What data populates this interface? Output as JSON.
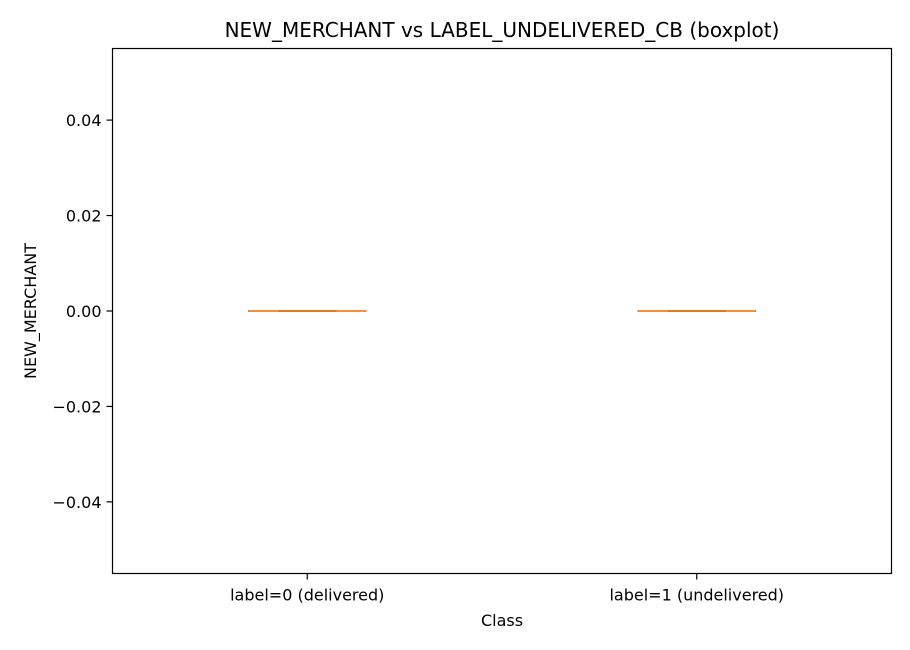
{
  "chart_data": {
    "type": "boxplot",
    "title": "NEW_MERCHANT vs LABEL_UNDELIVERED_CB (boxplot)",
    "xlabel": "Class",
    "ylabel": "NEW_MERCHANT",
    "categories": [
      "label=0 (delivered)",
      "label=1 (undelivered)"
    ],
    "boxes": [
      {
        "category": "label=0 (delivered)",
        "whislo": 0.0,
        "q1": 0.0,
        "median": 0.0,
        "q3": 0.0,
        "whishi": 0.0
      },
      {
        "category": "label=1 (undelivered)",
        "whislo": 0.0,
        "q1": 0.0,
        "median": 0.0,
        "q3": 0.0,
        "whishi": 0.0
      }
    ],
    "yticks": [
      -0.04,
      -0.02,
      0.0,
      0.02,
      0.04
    ],
    "ytick_labels": [
      "−0.04",
      "−0.02",
      "0.00",
      "0.02",
      "0.04"
    ],
    "ylim": [
      -0.055,
      0.055
    ],
    "grid": false,
    "legend": "none",
    "colors": {
      "median": "#ff7f0e",
      "box": "#000000",
      "axes": "#000000",
      "background": "#ffffff"
    }
  }
}
